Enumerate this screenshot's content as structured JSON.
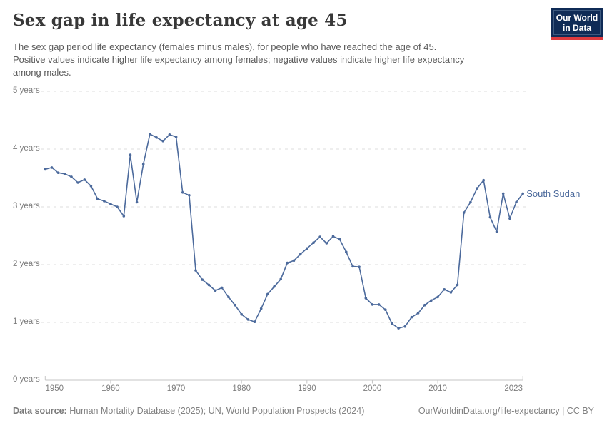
{
  "header": {
    "title": "Sex gap in life expectancy at age 45",
    "subtitle_lines": [
      "The sex gap period life expectancy (females minus males), for people who have reached the age of 45.",
      "Positive values indicate higher life expectancy among females; negative values indicate higher life expectancy",
      "among males."
    ],
    "logo": {
      "line1": "Our World",
      "line2": "in Data"
    }
  },
  "chart_data": {
    "type": "line",
    "title": "Sex gap in life expectancy at age 45",
    "xlabel": "",
    "ylabel": "years",
    "xlim": [
      1950,
      2023
    ],
    "ylim": [
      0,
      5
    ],
    "grid": "horizontal-dashed",
    "legend_position": "end-of-line-label",
    "line_color": "#4c6a9c",
    "x_ticks": [
      1950,
      1960,
      1970,
      1980,
      1990,
      2000,
      2010,
      2023
    ],
    "y_ticks": [
      "0 years",
      "1 years",
      "2 years",
      "3 years",
      "4 years",
      "5 years"
    ],
    "x": [
      1950,
      1951,
      1952,
      1953,
      1954,
      1955,
      1956,
      1957,
      1958,
      1959,
      1960,
      1961,
      1962,
      1963,
      1964,
      1965,
      1966,
      1967,
      1968,
      1969,
      1970,
      1971,
      1972,
      1973,
      1974,
      1975,
      1976,
      1977,
      1978,
      1979,
      1980,
      1981,
      1982,
      1983,
      1984,
      1985,
      1986,
      1987,
      1988,
      1989,
      1990,
      1991,
      1992,
      1993,
      1994,
      1995,
      1996,
      1997,
      1998,
      1999,
      2000,
      2001,
      2002,
      2003,
      2004,
      2005,
      2006,
      2007,
      2008,
      2009,
      2010,
      2011,
      2012,
      2013,
      2014,
      2015,
      2016,
      2017,
      2018,
      2019,
      2020,
      2021,
      2022,
      2023
    ],
    "series": [
      {
        "name": "South Sudan",
        "values": [
          3.65,
          3.68,
          3.59,
          3.57,
          3.52,
          3.42,
          3.47,
          3.36,
          3.14,
          3.1,
          3.05,
          3.0,
          2.84,
          3.9,
          3.08,
          3.74,
          4.26,
          4.2,
          4.14,
          4.25,
          4.21,
          3.25,
          3.2,
          1.9,
          1.74,
          1.65,
          1.55,
          1.6,
          1.44,
          1.3,
          1.14,
          1.05,
          1.01,
          1.24,
          1.49,
          1.62,
          1.75,
          2.03,
          2.07,
          2.18,
          2.28,
          2.38,
          2.48,
          2.37,
          2.49,
          2.44,
          2.22,
          1.97,
          1.96,
          1.42,
          1.31,
          1.31,
          1.22,
          0.98,
          0.9,
          0.93,
          1.09,
          1.16,
          1.3,
          1.38,
          1.44,
          1.57,
          1.52,
          1.65,
          2.9,
          3.08,
          3.32,
          3.46,
          2.82,
          2.57,
          3.23,
          2.8,
          3.08,
          3.23
        ]
      }
    ]
  },
  "footer": {
    "source_label": "Data source:",
    "source_text": " Human Mortality Database (2025); UN, World Population Prospects (2024)",
    "credit": "OurWorldinData.org/life-expectancy | CC BY"
  }
}
